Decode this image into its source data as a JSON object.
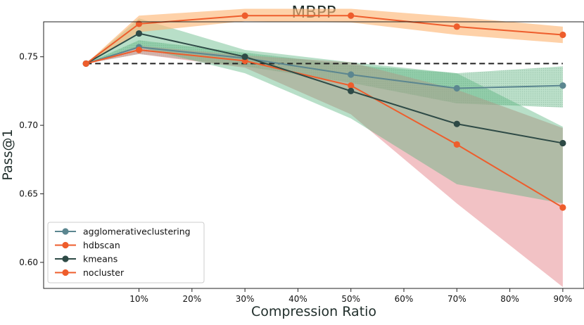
{
  "chart_data": {
    "type": "line",
    "title": "MBPP",
    "xlabel": "Compression Ratio",
    "ylabel": "Pass@1",
    "x": [
      0,
      10,
      30,
      50,
      70,
      90
    ],
    "x_tick_values": [
      10,
      20,
      30,
      40,
      50,
      60,
      70,
      80,
      90
    ],
    "x_tick_labels": [
      "10%",
      "20%",
      "30%",
      "40%",
      "50%",
      "60%",
      "70%",
      "80%",
      "90%"
    ],
    "y_tick_values": [
      0.6,
      0.65,
      0.7,
      0.75
    ],
    "y_tick_labels": [
      "0.60",
      "0.65",
      "0.70",
      "0.75"
    ],
    "xlim": [
      -8,
      94
    ],
    "ylim": [
      0.581,
      0.7755
    ],
    "grid": false,
    "legend_position": "lower-left",
    "baseline": {
      "value": 0.745,
      "style": "dashed",
      "color": "#222222"
    },
    "series": [
      {
        "name": "agglomerativeclustering",
        "color": "#5b8690",
        "fill_color": "#6fb28a",
        "fill_pattern": "dotted",
        "fill_opacity": 0.55,
        "values": [
          0.745,
          0.757,
          0.749,
          0.737,
          0.727,
          0.729
        ],
        "lower": [
          0.745,
          0.752,
          0.743,
          0.731,
          0.716,
          0.713
        ],
        "upper": [
          0.745,
          0.762,
          0.753,
          0.744,
          0.738,
          0.743
        ]
      },
      {
        "name": "hdbscan",
        "color": "#ee5d2c",
        "fill_color": "#e88f95",
        "fill_pattern": "solid",
        "fill_opacity": 0.55,
        "values": [
          0.745,
          0.755,
          0.747,
          0.729,
          0.686,
          0.64
        ],
        "lower": [
          0.745,
          0.752,
          0.742,
          0.708,
          0.643,
          0.582
        ],
        "upper": [
          0.745,
          0.758,
          0.751,
          0.746,
          0.726,
          0.698
        ]
      },
      {
        "name": "kmeans",
        "color": "#2e4a46",
        "fill_color": "#55b27b",
        "fill_pattern": "solid",
        "fill_opacity": 0.42,
        "values": [
          0.745,
          0.767,
          0.75,
          0.725,
          0.701,
          0.687
        ],
        "lower": [
          0.745,
          0.757,
          0.738,
          0.705,
          0.657,
          0.643
        ],
        "upper": [
          0.745,
          0.778,
          0.755,
          0.746,
          0.738,
          0.699
        ]
      },
      {
        "name": "nocluster",
        "color": "#ee5d2c",
        "fill_color": "#fdb87a",
        "fill_pattern": "solid",
        "fill_opacity": 0.65,
        "values": [
          0.745,
          0.774,
          0.78,
          0.78,
          0.772,
          0.766
        ],
        "lower": [
          0.745,
          0.768,
          0.776,
          0.775,
          0.766,
          0.76
        ],
        "upper": [
          0.745,
          0.78,
          0.785,
          0.785,
          0.779,
          0.772
        ]
      }
    ]
  }
}
